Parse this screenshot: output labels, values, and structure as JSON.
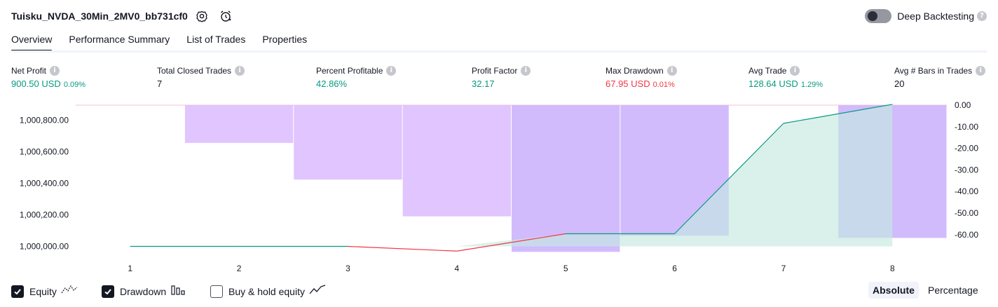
{
  "header": {
    "title": "Tuisku_NVDA_30Min_2MV0_bb731cf0",
    "settings_icon": "gear-icon",
    "alert_icon": "alarm-clock-icon",
    "deep_backtesting_label": "Deep Backtesting",
    "deep_backtesting_enabled": false
  },
  "tabs": [
    {
      "label": "Overview",
      "active": true
    },
    {
      "label": "Performance Summary",
      "active": false
    },
    {
      "label": "List of Trades",
      "active": false
    },
    {
      "label": "Properties",
      "active": false
    }
  ],
  "metrics": [
    {
      "label": "Net Profit",
      "value": "900.50 USD",
      "pct": "0.09%",
      "tone": "pos"
    },
    {
      "label": "Total Closed Trades",
      "value": "7",
      "pct": "",
      "tone": "neu"
    },
    {
      "label": "Percent Profitable",
      "value": "42.86%",
      "pct": "",
      "tone": "pos"
    },
    {
      "label": "Profit Factor",
      "value": "32.17",
      "pct": "",
      "tone": "pos"
    },
    {
      "label": "Max Drawdown",
      "value": "67.95 USD",
      "pct": "0.01%",
      "tone": "neg"
    },
    {
      "label": "Avg Trade",
      "value": "128.64 USD",
      "pct": "1.29%",
      "tone": "pos"
    },
    {
      "label": "Avg # Bars in Trades",
      "value": "20",
      "pct": "",
      "tone": "neu"
    }
  ],
  "colors": {
    "profit": "#089981",
    "loss": "#f23645",
    "drawdown_bar": "#e1c5ff",
    "equity_fill": "#d3efe8",
    "overlap_bar": "#b4b9e6",
    "text": "#131722"
  },
  "chart_data": {
    "type": "line",
    "x": [
      1,
      2,
      3,
      4,
      5,
      6,
      7,
      8
    ],
    "x_tick_labels": [
      "1",
      "2",
      "3",
      "4",
      "5",
      "6",
      "7",
      "8"
    ],
    "series": [
      {
        "name": "Equity",
        "axis": "left",
        "values": [
          1000000.0,
          1000000.0,
          1000000.0,
          999970.0,
          1000080.0,
          1000080.0,
          1000780.0,
          1000900.5
        ]
      },
      {
        "name": "Drawdown",
        "axis": "right",
        "type": "bar",
        "values": [
          0,
          -17.5,
          -34.5,
          -51.5,
          -67.95,
          -60.5,
          0,
          -61.5
        ]
      }
    ],
    "left_axis": {
      "ticks": [
        1000000,
        1000200,
        1000400,
        1000600,
        1000800
      ],
      "tick_labels": [
        "1,000,000.00",
        "1,000,200.00",
        "1,000,400.00",
        "1,000,600.00",
        "1,000,800.00"
      ],
      "range": [
        999960,
        1000900.5
      ]
    },
    "right_axis": {
      "ticks": [
        0,
        -10,
        -20,
        -30,
        -40,
        -50,
        -60
      ],
      "tick_labels": [
        "0.00",
        "-10.00",
        "-20.00",
        "-30.00",
        "-40.00",
        "-50.00",
        "-60.00"
      ],
      "range": [
        -67.95,
        0
      ]
    }
  },
  "legend": [
    {
      "label": "Equity",
      "checked": true,
      "icon": "equity-line-icon"
    },
    {
      "label": "Drawdown",
      "checked": true,
      "icon": "drawdown-bars-icon"
    },
    {
      "label": "Buy & hold equity",
      "checked": false,
      "icon": "buy-hold-line-icon"
    }
  ],
  "view_modes": [
    {
      "label": "Absolute",
      "active": true
    },
    {
      "label": "Percentage",
      "active": false
    }
  ]
}
